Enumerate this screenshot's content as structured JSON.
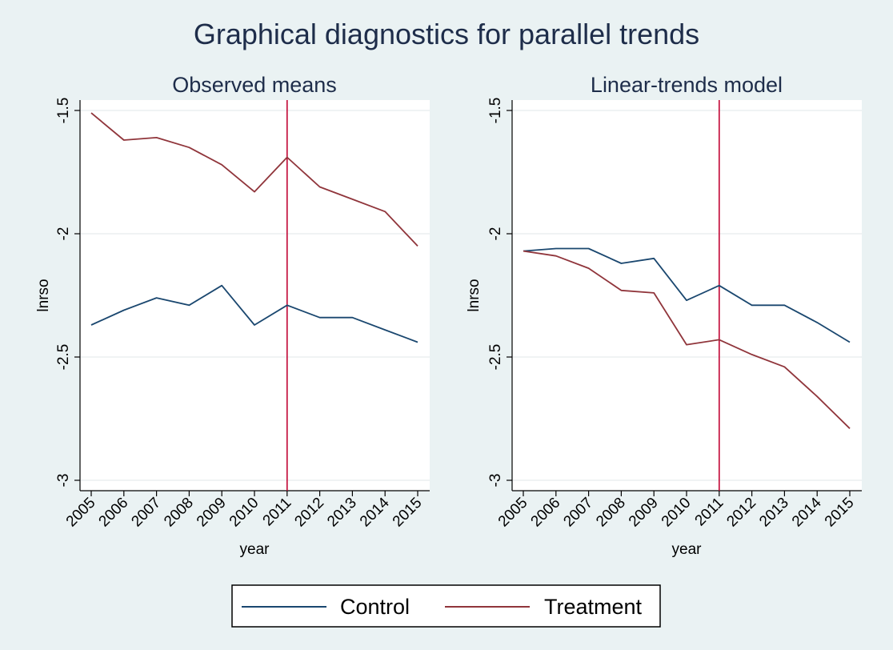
{
  "figure_title": "Graphical diagnostics for parallel trends",
  "colors": {
    "background": "#eaf2f3",
    "plot_background": "#ffffff",
    "grid": "#e6ecee",
    "axis": "#000000",
    "control": "#1a476f",
    "treatment": "#90353b",
    "vline": "#c10534"
  },
  "legend": {
    "items": [
      {
        "label": "Control",
        "series": "control"
      },
      {
        "label": "Treatment",
        "series": "treatment"
      }
    ]
  },
  "chart_data": [
    {
      "type": "line",
      "title": "Observed means",
      "xlabel": "year",
      "ylabel": "lnrso",
      "x": [
        2005,
        2006,
        2007,
        2008,
        2009,
        2010,
        2011,
        2012,
        2013,
        2014,
        2015
      ],
      "x_tick_labels": [
        "2005",
        "2006",
        "2007",
        "2008",
        "2009",
        "2010",
        "2011",
        "2012",
        "2013",
        "2014",
        "2015"
      ],
      "ylim": [
        -3,
        -1.5
      ],
      "y_ticks": [
        -1.5,
        -2,
        -2.5,
        -3
      ],
      "y_tick_labels": [
        "-1.5",
        "-2",
        "-2.5",
        "-3"
      ],
      "vline_x": 2011,
      "grid": true,
      "series": [
        {
          "name": "Control",
          "key": "control",
          "values": [
            -2.37,
            -2.31,
            -2.26,
            -2.29,
            -2.21,
            -2.37,
            -2.29,
            -2.34,
            -2.34,
            -2.39,
            -2.44
          ]
        },
        {
          "name": "Treatment",
          "key": "treatment",
          "values": [
            -1.51,
            -1.62,
            -1.61,
            -1.65,
            -1.72,
            -1.83,
            -1.69,
            -1.81,
            -1.86,
            -1.91,
            -2.05
          ]
        }
      ]
    },
    {
      "type": "line",
      "title": "Linear-trends model",
      "xlabel": "year",
      "ylabel": "lnrso",
      "x": [
        2005,
        2006,
        2007,
        2008,
        2009,
        2010,
        2011,
        2012,
        2013,
        2014,
        2015
      ],
      "x_tick_labels": [
        "2005",
        "2006",
        "2007",
        "2008",
        "2009",
        "2010",
        "2011",
        "2012",
        "2013",
        "2014",
        "2015"
      ],
      "ylim": [
        -3,
        -1.5
      ],
      "y_ticks": [
        -1.5,
        -2,
        -2.5,
        -3
      ],
      "y_tick_labels": [
        "-1.5",
        "-2",
        "-2.5",
        "-3"
      ],
      "vline_x": 2011,
      "grid": true,
      "series": [
        {
          "name": "Control",
          "key": "control",
          "values": [
            -2.07,
            -2.06,
            -2.06,
            -2.12,
            -2.1,
            -2.27,
            -2.21,
            -2.29,
            -2.29,
            -2.36,
            -2.44
          ]
        },
        {
          "name": "Treatment",
          "key": "treatment",
          "values": [
            -2.07,
            -2.09,
            -2.14,
            -2.23,
            -2.24,
            -2.45,
            -2.43,
            -2.49,
            -2.54,
            -2.66,
            -2.79
          ]
        }
      ]
    }
  ]
}
